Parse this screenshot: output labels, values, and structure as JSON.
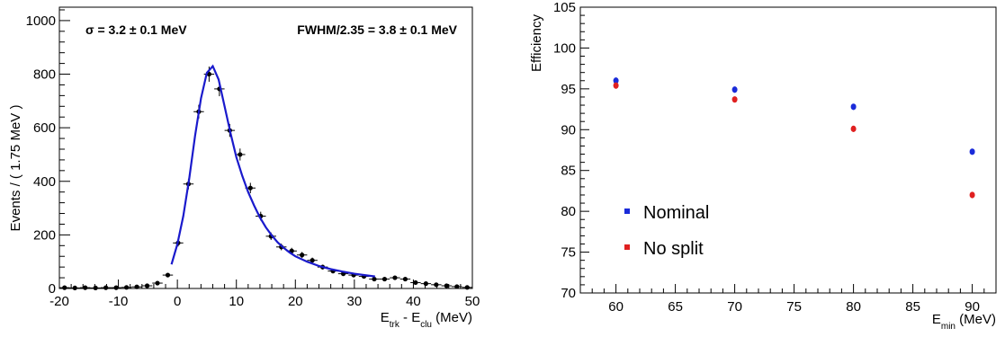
{
  "chart_data": [
    {
      "type": "scatter",
      "xlabel": {
        "main": "E",
        "sub1": "trk",
        "mid": " - E",
        "sub2": "clu",
        "unit": " (MeV)"
      },
      "ylabel": "Events / ( 1.75 MeV )",
      "xlim": [
        -20,
        50
      ],
      "ylim": [
        0,
        1050
      ],
      "xticks": [
        -20,
        -10,
        0,
        10,
        20,
        30,
        40,
        50
      ],
      "yticks": [
        0,
        200,
        400,
        600,
        800,
        1000
      ],
      "annotations": {
        "sigma": "σ = 3.2 ± 0.1 MeV",
        "fwhm": "FWHM/2.35 = 3.8 ± 0.1 MeV"
      },
      "x_bin_width": 1.75,
      "series": [
        {
          "marker_color": "#000000",
          "x": [
            -19.125,
            -17.375,
            -15.625,
            -13.875,
            -12.125,
            -10.375,
            -8.625,
            -6.875,
            -5.125,
            -3.375,
            -1.625,
            0.125,
            1.875,
            3.625,
            5.375,
            7.125,
            8.875,
            10.625,
            12.375,
            14.125,
            15.875,
            17.625,
            19.375,
            21.125,
            22.875,
            24.625,
            26.375,
            28.125,
            29.875,
            31.625,
            33.375,
            35.125,
            36.875,
            38.625,
            40.375,
            42.125,
            43.875,
            45.625,
            47.375,
            49.125
          ],
          "y": [
            3,
            2,
            3,
            2,
            3,
            3,
            4,
            6,
            10,
            20,
            50,
            170,
            390,
            660,
            800,
            745,
            590,
            500,
            375,
            270,
            195,
            155,
            140,
            125,
            105,
            80,
            65,
            55,
            50,
            45,
            35,
            35,
            40,
            35,
            22,
            18,
            14,
            10,
            7,
            4
          ]
        }
      ],
      "fit_curve": {
        "line_color": "#1a1acc",
        "x": [
          -1.0,
          0.0,
          1.0,
          2.0,
          3.0,
          4.0,
          5.0,
          6.0,
          7.0,
          8.0,
          9.0,
          10.0,
          11.0,
          12.0,
          13.0,
          14.0,
          15.0,
          16.0,
          17.0,
          18.0,
          19.0,
          20.0,
          22.0,
          24.0,
          26.0,
          28.0,
          30.0,
          32.0,
          33.5
        ],
        "y": [
          90,
          165,
          270,
          410,
          570,
          710,
          805,
          830,
          780,
          680,
          580,
          490,
          420,
          360,
          310,
          265,
          228,
          198,
          172,
          152,
          135,
          120,
          100,
          84,
          72,
          63,
          55,
          49,
          45
        ]
      }
    },
    {
      "type": "scatter",
      "xlabel": {
        "main": "E",
        "sub": "min",
        "unit": " (MeV)"
      },
      "ylabel": "Efficiency",
      "xlim": [
        57,
        92
      ],
      "ylim": [
        70,
        105
      ],
      "xticks": [
        60,
        65,
        70,
        75,
        80,
        85,
        90
      ],
      "yticks": [
        70,
        75,
        80,
        85,
        90,
        95,
        100,
        105
      ],
      "legend_position": "left-center",
      "series": [
        {
          "name": "Nominal",
          "color": "#1a2bd9",
          "x": [
            60,
            70,
            80,
            90
          ],
          "y": [
            96.0,
            94.9,
            92.8,
            87.3
          ]
        },
        {
          "name": "No split",
          "color": "#e02020",
          "x": [
            60,
            70,
            80,
            90
          ],
          "y": [
            95.4,
            93.7,
            90.1,
            82.0
          ]
        }
      ]
    }
  ]
}
